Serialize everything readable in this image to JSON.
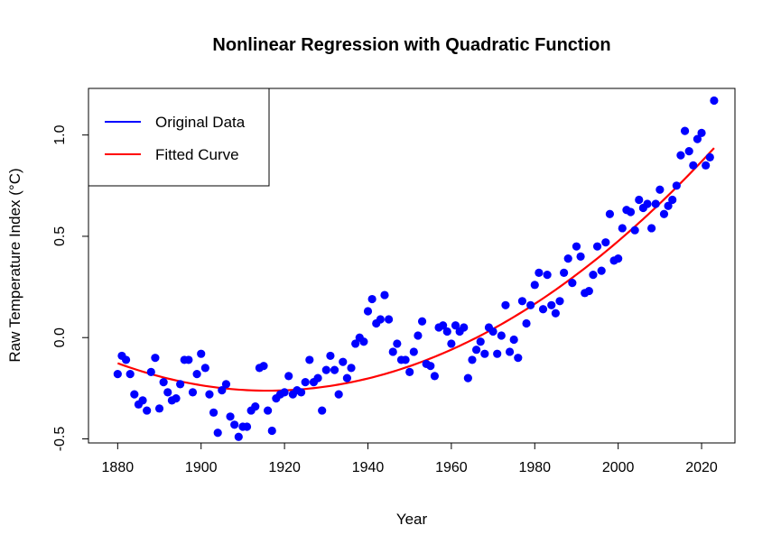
{
  "chart_data": {
    "type": "scatter",
    "title": "Nonlinear Regression with Quadratic Function",
    "xlabel": "Year",
    "ylabel": "Raw Temperature Index (°C)",
    "xlim": [
      1873,
      2028
    ],
    "ylim": [
      -0.52,
      1.23
    ],
    "x_ticks": [
      1880,
      1900,
      1920,
      1940,
      1960,
      1980,
      2000,
      2020
    ],
    "y_ticks": [
      -0.5,
      0.0,
      0.5,
      1.0
    ],
    "x_tick_labels": [
      "1880",
      "1900",
      "1920",
      "1940",
      "1960",
      "1980",
      "2000",
      "2020"
    ],
    "y_tick_labels": [
      "-0.5",
      "0.0",
      "0.5",
      "1.0"
    ],
    "legend": {
      "position": "top-left",
      "entries": [
        {
          "label": "Original Data",
          "color": "#0000ff"
        },
        {
          "label": "Fitted Curve",
          "color": "#ff0000"
        }
      ]
    },
    "series": [
      {
        "name": "Original Data",
        "color": "#0000ff",
        "x": [
          1880,
          1881,
          1882,
          1883,
          1884,
          1885,
          1886,
          1887,
          1888,
          1889,
          1890,
          1891,
          1892,
          1893,
          1894,
          1895,
          1896,
          1897,
          1898,
          1899,
          1900,
          1901,
          1902,
          1903,
          1904,
          1905,
          1906,
          1907,
          1908,
          1909,
          1910,
          1911,
          1912,
          1913,
          1914,
          1915,
          1916,
          1917,
          1918,
          1919,
          1920,
          1921,
          1922,
          1923,
          1924,
          1925,
          1926,
          1927,
          1928,
          1929,
          1930,
          1931,
          1932,
          1933,
          1934,
          1935,
          1936,
          1937,
          1938,
          1939,
          1940,
          1941,
          1942,
          1943,
          1944,
          1945,
          1946,
          1947,
          1948,
          1949,
          1950,
          1951,
          1952,
          1953,
          1954,
          1955,
          1956,
          1957,
          1958,
          1959,
          1960,
          1961,
          1962,
          1963,
          1964,
          1965,
          1966,
          1967,
          1968,
          1969,
          1970,
          1971,
          1972,
          1973,
          1974,
          1975,
          1976,
          1977,
          1978,
          1979,
          1980,
          1981,
          1982,
          1983,
          1984,
          1985,
          1986,
          1987,
          1988,
          1989,
          1990,
          1991,
          1992,
          1993,
          1994,
          1995,
          1996,
          1997,
          1998,
          1999,
          2000,
          2001,
          2002,
          2003,
          2004,
          2005,
          2006,
          2007,
          2008,
          2009,
          2010,
          2011,
          2012,
          2013,
          2014,
          2015,
          2016,
          2017,
          2018,
          2019,
          2020,
          2021,
          2022,
          2023
        ],
        "y": [
          -0.18,
          -0.09,
          -0.11,
          -0.18,
          -0.28,
          -0.33,
          -0.31,
          -0.36,
          -0.17,
          -0.1,
          -0.35,
          -0.22,
          -0.27,
          -0.31,
          -0.3,
          -0.23,
          -0.11,
          -0.11,
          -0.27,
          -0.18,
          -0.08,
          -0.15,
          -0.28,
          -0.37,
          -0.47,
          -0.26,
          -0.23,
          -0.39,
          -0.43,
          -0.49,
          -0.44,
          -0.44,
          -0.36,
          -0.34,
          -0.15,
          -0.14,
          -0.36,
          -0.46,
          -0.3,
          -0.28,
          -0.27,
          -0.19,
          -0.28,
          -0.26,
          -0.27,
          -0.22,
          -0.11,
          -0.22,
          -0.2,
          -0.36,
          -0.16,
          -0.09,
          -0.16,
          -0.28,
          -0.12,
          -0.2,
          -0.15,
          -0.03,
          0.0,
          -0.02,
          0.13,
          0.19,
          0.07,
          0.09,
          0.21,
          0.09,
          -0.07,
          -0.03,
          -0.11,
          -0.11,
          -0.17,
          -0.07,
          0.01,
          0.08,
          -0.13,
          -0.14,
          -0.19,
          0.05,
          0.06,
          0.03,
          -0.03,
          0.06,
          0.03,
          0.05,
          -0.2,
          -0.11,
          -0.06,
          -0.02,
          -0.08,
          0.05,
          0.03,
          -0.08,
          0.01,
          0.16,
          -0.07,
          -0.01,
          -0.1,
          0.18,
          0.07,
          0.16,
          0.26,
          0.32,
          0.14,
          0.31,
          0.16,
          0.12,
          0.18,
          0.32,
          0.39,
          0.27,
          0.45,
          0.4,
          0.22,
          0.23,
          0.31,
          0.45,
          0.33,
          0.47,
          0.61,
          0.38,
          0.39,
          0.54,
          0.63,
          0.62,
          0.53,
          0.68,
          0.64,
          0.66,
          0.54,
          0.66,
          0.73,
          0.61,
          0.65,
          0.68,
          0.75,
          0.9,
          1.02,
          0.92,
          0.85,
          0.98,
          1.01,
          0.85,
          0.89,
          1.17
        ]
      },
      {
        "name": "Fitted Curve",
        "color": "#ff0000",
        "model": "quadratic",
        "coefficients": {
          "year_of_minimum": 1916,
          "value_at_minimum": -0.262,
          "curvature_per_year_squared": 0.0001046
        },
        "x_range": [
          1880,
          2023
        ]
      }
    ]
  }
}
